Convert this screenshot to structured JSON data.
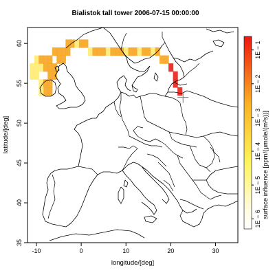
{
  "title": "Bialistok tall tower 2006-07-15 00:00:00",
  "map": {
    "xlabel": "longitude/[deg]",
    "ylabel": "latitude/[deg]",
    "lon_range": [
      -12,
      35
    ],
    "lat_range": [
      35,
      62
    ],
    "x_ticks": [
      {
        "value": -10,
        "label": "-10"
      },
      {
        "value": 0,
        "label": "0"
      },
      {
        "value": 10,
        "label": "10"
      },
      {
        "value": 20,
        "label": "20"
      },
      {
        "value": 30,
        "label": "30"
      }
    ],
    "y_ticks": [
      {
        "value": 35,
        "label": "35"
      },
      {
        "value": 40,
        "label": "40"
      },
      {
        "value": 45,
        "label": "45"
      },
      {
        "value": 50,
        "label": "50"
      },
      {
        "value": 55,
        "label": "55"
      },
      {
        "value": 60,
        "label": "60"
      }
    ],
    "station": {
      "lon": 22.75,
      "lat": 53.23,
      "symbol": "+"
    },
    "influence_colors": {
      "high": "#e8221a",
      "mid": "#f7a51f",
      "low": "#ffeb73"
    },
    "influence_band": [
      {
        "lon": -10,
        "lat": 57,
        "level": "low"
      },
      {
        "lon": -9,
        "lat": 57,
        "level": "low"
      },
      {
        "lon": -11,
        "lat": 57,
        "level": "low"
      },
      {
        "lon": -10,
        "lat": 58,
        "level": "low"
      },
      {
        "lon": -9,
        "lat": 58,
        "level": "mid"
      },
      {
        "lon": -8,
        "lat": 58,
        "level": "mid"
      },
      {
        "lon": -7,
        "lat": 58,
        "level": "mid"
      },
      {
        "lon": -6,
        "lat": 59,
        "level": "mid"
      },
      {
        "lon": -5,
        "lat": 59,
        "level": "mid"
      },
      {
        "lon": -4,
        "lat": 59,
        "level": "mid"
      },
      {
        "lon": -3,
        "lat": 60,
        "level": "mid"
      },
      {
        "lon": -2,
        "lat": 60,
        "level": "mid"
      },
      {
        "lon": -1,
        "lat": 60,
        "level": "low"
      },
      {
        "lon": 0,
        "lat": 60,
        "level": "mid"
      },
      {
        "lon": 1,
        "lat": 60,
        "level": "mid"
      },
      {
        "lon": 2,
        "lat": 59,
        "level": "low"
      },
      {
        "lon": 3,
        "lat": 59,
        "level": "mid"
      },
      {
        "lon": 4,
        "lat": 59,
        "level": "mid"
      },
      {
        "lon": 5,
        "lat": 59,
        "level": "mid"
      },
      {
        "lon": 6,
        "lat": 59,
        "level": "low"
      },
      {
        "lon": 7,
        "lat": 59,
        "level": "mid"
      },
      {
        "lon": 8,
        "lat": 59,
        "level": "mid"
      },
      {
        "lon": 9,
        "lat": 59,
        "level": "mid"
      },
      {
        "lon": 10,
        "lat": 59,
        "level": "low"
      },
      {
        "lon": 11,
        "lat": 59,
        "level": "mid"
      },
      {
        "lon": 12,
        "lat": 59,
        "level": "mid"
      },
      {
        "lon": 13,
        "lat": 59,
        "level": "low"
      },
      {
        "lon": 14,
        "lat": 59,
        "level": "mid"
      },
      {
        "lon": 15,
        "lat": 59,
        "level": "mid"
      },
      {
        "lon": 16,
        "lat": 59,
        "level": "low"
      },
      {
        "lon": 17,
        "lat": 59,
        "level": "mid"
      },
      {
        "lon": 18,
        "lat": 58,
        "level": "mid"
      },
      {
        "lon": 19,
        "lat": 58,
        "level": "mid"
      },
      {
        "lon": 20,
        "lat": 57,
        "level": "high"
      },
      {
        "lon": 21,
        "lat": 56,
        "level": "high"
      },
      {
        "lon": 21,
        "lat": 55,
        "level": "high"
      },
      {
        "lon": 22,
        "lat": 54,
        "level": "high"
      },
      {
        "lon": -10,
        "lat": 56,
        "level": "low"
      },
      {
        "lon": -9,
        "lat": 55,
        "level": "low"
      },
      {
        "lon": -8,
        "lat": 55,
        "level": "mid"
      },
      {
        "lon": -7,
        "lat": 56,
        "level": "mid"
      },
      {
        "lon": -6,
        "lat": 56,
        "level": "mid"
      },
      {
        "lon": -6,
        "lat": 57,
        "level": "mid"
      },
      {
        "lon": -7,
        "lat": 57,
        "level": "mid"
      },
      {
        "lon": -8,
        "lat": 57,
        "level": "mid"
      },
      {
        "lon": -5,
        "lat": 58,
        "level": "mid"
      },
      {
        "lon": -8,
        "lat": 54,
        "level": "mid"
      },
      {
        "lon": -7,
        "lat": 54,
        "level": "mid"
      },
      {
        "lon": -9,
        "lat": 54,
        "level": "low"
      },
      {
        "lon": -7,
        "lat": 55,
        "level": "mid"
      },
      {
        "lon": -4,
        "lat": 58,
        "level": "mid"
      },
      {
        "lon": -3,
        "lat": 59,
        "level": "mid"
      },
      {
        "lon": -11,
        "lat": 56,
        "level": "low"
      }
    ]
  },
  "colorbar": {
    "label": "surface influence  [ppm/(µmole/(m²s))]",
    "ticks": [
      {
        "value": -6,
        "label": "1E − 6"
      },
      {
        "value": -5,
        "label": "1E − 5"
      },
      {
        "value": -4,
        "label": "1E − 4"
      },
      {
        "value": -3,
        "label": "1E − 3"
      },
      {
        "value": -2,
        "label": "1E − 2"
      },
      {
        "value": -1,
        "label": "1E − 1"
      }
    ],
    "range": [
      -6.3,
      -0.6
    ],
    "colors": {
      "bottom": "#ffffff",
      "lower": "#fff45a",
      "middle": "#fbb222",
      "top": "#ee1610"
    }
  }
}
